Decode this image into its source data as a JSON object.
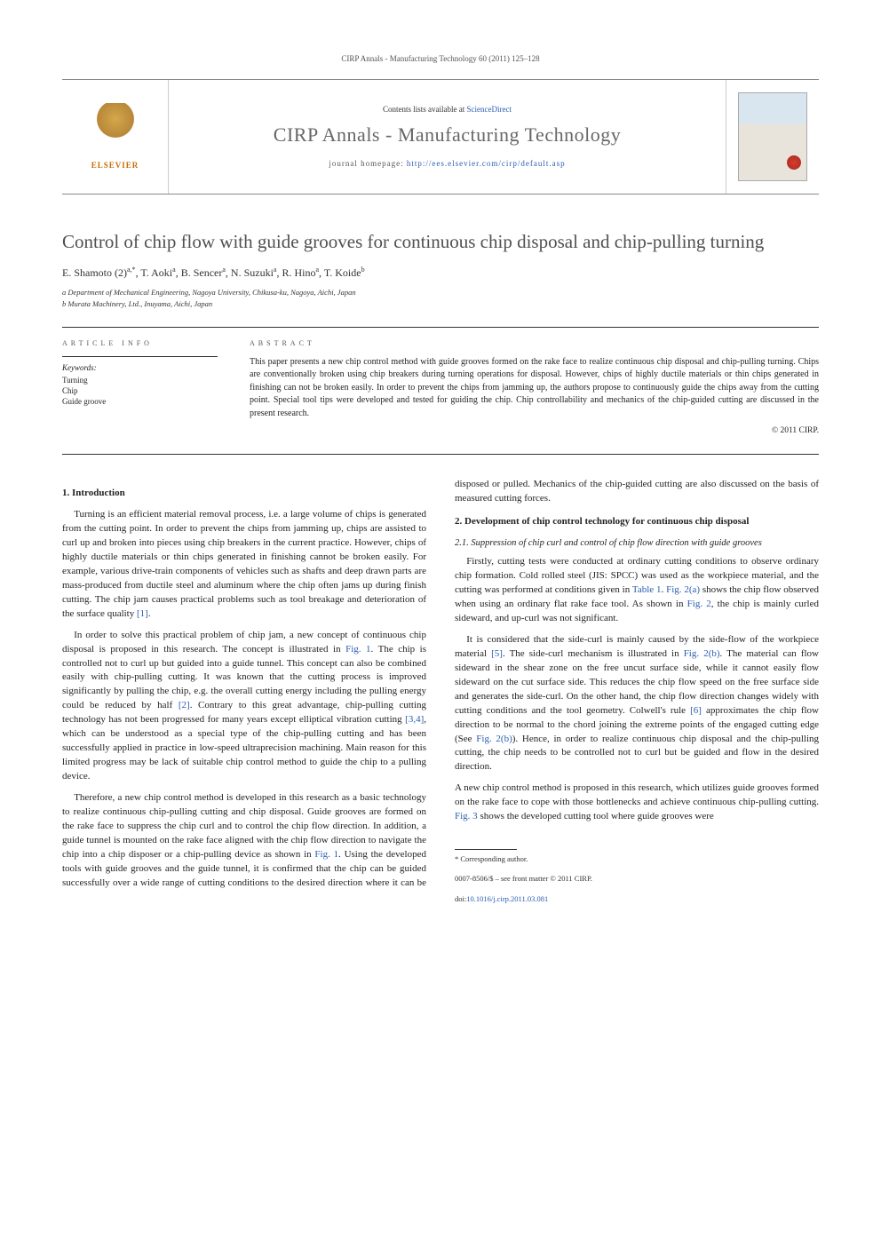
{
  "running_head": "CIRP Annals - Manufacturing Technology 60 (2011) 125–128",
  "masthead": {
    "publisher_name": "ELSEVIER",
    "contents_prefix": "Contents lists available at ",
    "contents_link": "ScienceDirect",
    "journal_title": "CIRP Annals - Manufacturing Technology",
    "homepage_prefix": "journal homepage: ",
    "homepage_url": "http://ees.elsevier.com/cirp/default.asp"
  },
  "article": {
    "title": "Control of chip flow with guide grooves for continuous chip disposal and chip-pulling turning",
    "authors_html": "E. Shamoto (2)<sup>a,*</sup>, T. Aoki<sup>a</sup>, B. Sencer<sup>a</sup>, N. Suzuki<sup>a</sup>, R. Hino<sup>a</sup>, T. Koide<sup>b</sup>",
    "affiliations": [
      "a Department of Mechanical Engineering, Nagoya University, Chikusa-ku, Nagoya, Aichi, Japan",
      "b Murata Machinery, Ltd., Inuyama, Aichi, Japan"
    ]
  },
  "info": {
    "label": "ARTICLE INFO",
    "keywords_head": "Keywords:",
    "keywords": [
      "Turning",
      "Chip",
      "Guide groove"
    ]
  },
  "abstract": {
    "label": "ABSTRACT",
    "text": "This paper presents a new chip control method with guide grooves formed on the rake face to realize continuous chip disposal and chip-pulling turning. Chips are conventionally broken using chip breakers during turning operations for disposal. However, chips of highly ductile materials or thin chips generated in finishing can not be broken easily. In order to prevent the chips from jamming up, the authors propose to continuously guide the chips away from the cutting point. Special tool tips were developed and tested for guiding the chip. Chip controllability and mechanics of the chip-guided cutting are discussed in the present research.",
    "copyright": "© 2011 CIRP."
  },
  "sections": {
    "s1_title": "1. Introduction",
    "s1_p1": "Turning is an efficient material removal process, i.e. a large volume of chips is generated from the cutting point. In order to prevent the chips from jamming up, chips are assisted to curl up and broken into pieces using chip breakers in the current practice. However, chips of highly ductile materials or thin chips generated in finishing cannot be broken easily. For example, various drive-train components of vehicles such as shafts and deep drawn parts are mass-produced from ductile steel and aluminum where the chip often jams up during finish cutting. The chip jam causes practical problems such as tool breakage and deterioration of the surface quality [1].",
    "s1_p2": "In order to solve this practical problem of chip jam, a new concept of continuous chip disposal is proposed in this research. The concept is illustrated in Fig. 1. The chip is controlled not to curl up but guided into a guide tunnel. This concept can also be combined easily with chip-pulling cutting. It was known that the cutting process is improved significantly by pulling the chip, e.g. the overall cutting energy including the pulling energy could be reduced by half [2]. Contrary to this great advantage, chip-pulling cutting technology has not been progressed for many years except elliptical vibration cutting [3,4], which can be understood as a special type of the chip-pulling cutting and has been successfully applied in practice in low-speed ultraprecision machining. Main reason for this limited progress may be lack of suitable chip control method to guide the chip to a pulling device.",
    "s1_p3": "Therefore, a new chip control method is developed in this research as a basic technology to realize continuous chip-pulling cutting and chip disposal. Guide grooves are formed on the rake face to suppress the chip curl and to control the chip flow direction. In addition, a guide tunnel is mounted on the rake face aligned with the chip flow direction to navigate the chip into a chip disposer or a chip-pulling device as shown in Fig. 1. Using the developed tools with guide grooves and the guide tunnel, it is confirmed that the chip can be guided successfully over a wide range of cutting conditions to the desired direction where it can be disposed or pulled. Mechanics of the chip-guided cutting are also discussed on the basis of measured cutting forces.",
    "s2_title": "2. Development of chip control technology for continuous chip disposal",
    "s21_title": "2.1. Suppression of chip curl and control of chip flow direction with guide grooves",
    "s21_p1": "Firstly, cutting tests were conducted at ordinary cutting conditions to observe ordinary chip formation. Cold rolled steel (JIS: SPCC) was used as the workpiece material, and the cutting was performed at conditions given in Table 1. Fig. 2(a) shows the chip flow observed when using an ordinary flat rake face tool. As shown in Fig. 2, the chip is mainly curled sideward, and up-curl was not significant.",
    "s21_p2": "It is considered that the side-curl is mainly caused by the side-flow of the workpiece material [5]. The side-curl mechanism is illustrated in Fig. 2(b). The material can flow sideward in the shear zone on the free uncut surface side, while it cannot easily flow sideward on the cut surface side. This reduces the chip flow speed on the free surface side and generates the side-curl. On the other hand, the chip flow direction changes widely with cutting conditions and the tool geometry. Colwell's rule [6] approximates the chip flow direction to be normal to the chord joining the extreme points of the engaged cutting edge (See Fig. 2(b)). Hence, in order to realize continuous chip disposal and the chip-pulling cutting, the chip needs to be controlled not to curl but be guided and flow in the desired direction.",
    "s21_p3": "A new chip control method is proposed in this research, which utilizes guide grooves formed on the rake face to cope with those bottlenecks and achieve continuous chip-pulling cutting. Fig. 3 shows the developed cutting tool where guide grooves were"
  },
  "footer": {
    "corresponding": "* Corresponding author.",
    "front_matter": "0007-8506/$ – see front matter © 2011 CIRP.",
    "doi_label": "doi:",
    "doi": "10.1016/j.cirp.2011.03.081"
  },
  "colors": {
    "link": "#2a5db0",
    "title_gray": "#505050",
    "elsevier_orange": "#c76b00"
  }
}
